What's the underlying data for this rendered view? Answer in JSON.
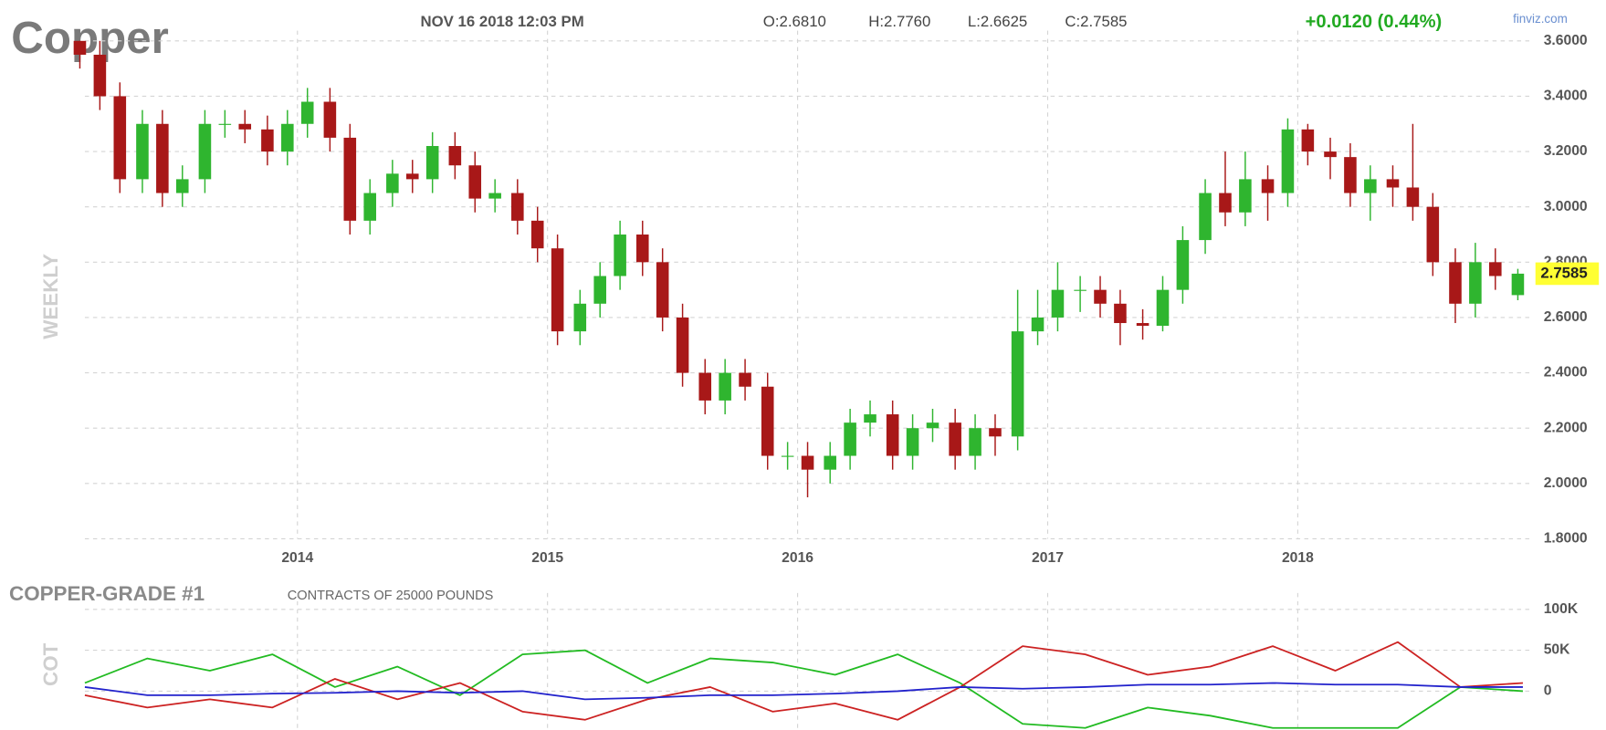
{
  "header": {
    "title": "Copper",
    "date": "NOV 16 2018 12:03 PM",
    "open": "O:2.6810",
    "high": "H:2.7760",
    "low": "L:2.6625",
    "close": "C:2.7585",
    "change": "+0.0120 (0.44%)",
    "source": "finviz.com"
  },
  "chart_data": [
    {
      "type": "candlestick",
      "y_label": "WEEKLY",
      "up_color": "#2fb52f",
      "down_color": "#a81818",
      "grid": true,
      "xlim": [
        2013.15,
        2018.93
      ],
      "xticks": [
        2014,
        2015,
        2016,
        2017,
        2018
      ],
      "ylim": [
        1.8,
        3.6
      ],
      "yticks": [
        {
          "value": 1.8,
          "label": "1.8000"
        },
        {
          "value": 2.0,
          "label": "2.0000"
        },
        {
          "value": 2.2,
          "label": "2.2000"
        },
        {
          "value": 2.4,
          "label": "2.4000"
        },
        {
          "value": 2.6,
          "label": "2.6000"
        },
        {
          "value": 2.8,
          "label": "2.8000"
        },
        {
          "value": 3.0,
          "label": "3.0000"
        },
        {
          "value": 3.2,
          "label": "3.2000"
        },
        {
          "value": 3.4,
          "label": "3.4000"
        },
        {
          "value": 3.6,
          "label": "3.6000"
        }
      ],
      "x": [
        2013.13,
        2013.21,
        2013.29,
        2013.38,
        2013.46,
        2013.54,
        2013.63,
        2013.71,
        2013.79,
        2013.88,
        2013.96,
        2014.04,
        2014.13,
        2014.21,
        2014.29,
        2014.38,
        2014.46,
        2014.54,
        2014.63,
        2014.71,
        2014.79,
        2014.88,
        2014.96,
        2015.04,
        2015.13,
        2015.21,
        2015.29,
        2015.38,
        2015.46,
        2015.54,
        2015.63,
        2015.71,
        2015.79,
        2015.88,
        2015.96,
        2016.04,
        2016.13,
        2016.21,
        2016.29,
        2016.38,
        2016.46,
        2016.54,
        2016.63,
        2016.71,
        2016.79,
        2016.88,
        2016.96,
        2017.04,
        2017.13,
        2017.21,
        2017.29,
        2017.38,
        2017.46,
        2017.54,
        2017.63,
        2017.71,
        2017.79,
        2017.88,
        2017.96,
        2018.04,
        2018.13,
        2018.21,
        2018.29,
        2018.38,
        2018.46,
        2018.54,
        2018.63,
        2018.71,
        2018.79,
        2018.88
      ],
      "open": [
        3.6,
        3.55,
        3.4,
        3.1,
        3.3,
        3.05,
        3.1,
        3.3,
        3.3,
        3.28,
        3.2,
        3.3,
        3.38,
        3.25,
        2.95,
        3.05,
        3.12,
        3.1,
        3.22,
        3.15,
        3.03,
        3.05,
        2.95,
        2.85,
        2.55,
        2.65,
        2.75,
        2.9,
        2.8,
        2.6,
        2.4,
        2.3,
        2.4,
        2.35,
        2.1,
        2.1,
        2.05,
        2.1,
        2.22,
        2.25,
        2.1,
        2.2,
        2.22,
        2.1,
        2.2,
        2.17,
        2.55,
        2.6,
        2.7,
        2.7,
        2.65,
        2.58,
        2.57,
        2.7,
        2.88,
        3.05,
        2.98,
        3.1,
        3.05,
        3.28,
        3.2,
        3.18,
        3.05,
        3.1,
        3.07,
        3.0,
        2.8,
        2.65,
        2.8,
        2.681
      ],
      "high": [
        3.6,
        3.6,
        3.45,
        3.35,
        3.35,
        3.15,
        3.35,
        3.35,
        3.35,
        3.33,
        3.35,
        3.43,
        3.43,
        3.3,
        3.1,
        3.17,
        3.17,
        3.27,
        3.27,
        3.2,
        3.1,
        3.1,
        3.0,
        2.9,
        2.7,
        2.8,
        2.95,
        2.95,
        2.85,
        2.65,
        2.45,
        2.45,
        2.45,
        2.4,
        2.15,
        2.15,
        2.15,
        2.27,
        2.3,
        2.3,
        2.25,
        2.27,
        2.27,
        2.25,
        2.25,
        2.7,
        2.7,
        2.8,
        2.75,
        2.75,
        2.7,
        2.63,
        2.75,
        2.93,
        3.1,
        3.2,
        3.2,
        3.15,
        3.32,
        3.3,
        3.25,
        3.23,
        3.15,
        3.15,
        3.3,
        3.05,
        2.85,
        2.87,
        2.85,
        2.776
      ],
      "low": [
        3.5,
        3.35,
        3.05,
        3.05,
        3.0,
        3.0,
        3.05,
        3.25,
        3.23,
        3.15,
        3.15,
        3.25,
        3.2,
        2.9,
        2.9,
        3.0,
        3.05,
        3.05,
        3.1,
        2.98,
        2.98,
        2.9,
        2.8,
        2.5,
        2.5,
        2.6,
        2.7,
        2.75,
        2.55,
        2.35,
        2.25,
        2.25,
        2.3,
        2.05,
        2.05,
        1.95,
        2.0,
        2.05,
        2.17,
        2.05,
        2.05,
        2.15,
        2.05,
        2.05,
        2.1,
        2.12,
        2.5,
        2.55,
        2.62,
        2.6,
        2.5,
        2.52,
        2.55,
        2.65,
        2.83,
        2.93,
        2.93,
        2.95,
        3.0,
        3.15,
        3.1,
        3.0,
        2.95,
        3.0,
        2.95,
        2.75,
        2.58,
        2.6,
        2.7,
        2.6625
      ],
      "close": [
        3.55,
        3.4,
        3.1,
        3.3,
        3.05,
        3.1,
        3.3,
        3.3,
        3.28,
        3.2,
        3.3,
        3.38,
        3.25,
        2.95,
        3.05,
        3.12,
        3.1,
        3.22,
        3.15,
        3.03,
        3.05,
        2.95,
        2.85,
        2.55,
        2.65,
        2.75,
        2.9,
        2.8,
        2.6,
        2.4,
        2.3,
        2.4,
        2.35,
        2.1,
        2.1,
        2.05,
        2.1,
        2.22,
        2.25,
        2.1,
        2.2,
        2.22,
        2.1,
        2.2,
        2.17,
        2.55,
        2.6,
        2.7,
        2.7,
        2.65,
        2.58,
        2.57,
        2.7,
        2.88,
        3.05,
        2.98,
        3.1,
        3.05,
        3.28,
        3.2,
        3.18,
        3.05,
        3.1,
        3.07,
        3.0,
        2.8,
        2.65,
        2.8,
        2.75,
        2.7585
      ]
    },
    {
      "type": "line",
      "title": "COPPER-GRADE #1",
      "subtitle": "CONTRACTS OF 25000 POUNDS",
      "y_label": "COT",
      "grid": true,
      "xlim": [
        2013.15,
        2018.93
      ],
      "xticks": [
        2014,
        2015,
        2016,
        2017,
        2018
      ],
      "ylim": [
        -45000,
        107500
      ],
      "yticks": [
        {
          "value": 0,
          "label": "0"
        },
        {
          "value": 50000,
          "label": "50K"
        },
        {
          "value": 100000,
          "label": "100K"
        }
      ],
      "x": [
        2013.15,
        2013.4,
        2013.65,
        2013.9,
        2014.15,
        2014.4,
        2014.65,
        2014.9,
        2015.15,
        2015.4,
        2015.65,
        2015.9,
        2016.15,
        2016.4,
        2016.65,
        2016.9,
        2017.15,
        2017.4,
        2017.65,
        2017.9,
        2018.15,
        2018.4,
        2018.65,
        2018.9
      ],
      "series": [
        {
          "color": "#22bb22",
          "values": [
            10000,
            40000,
            25000,
            45000,
            5000,
            30000,
            -5000,
            45000,
            50000,
            10000,
            40000,
            35000,
            20000,
            45000,
            10000,
            -40000,
            -45000,
            -20000,
            -30000,
            -45000,
            -45000,
            -45000,
            5000,
            0
          ]
        },
        {
          "color": "#cc2222",
          "values": [
            -5000,
            -20000,
            -10000,
            -20000,
            15000,
            -10000,
            10000,
            -25000,
            -35000,
            -10000,
            5000,
            -25000,
            -15000,
            -35000,
            5000,
            55000,
            45000,
            20000,
            30000,
            55000,
            25000,
            60000,
            5000,
            10000
          ]
        },
        {
          "color": "#2222cc",
          "values": [
            5000,
            -5000,
            -5000,
            -3000,
            -2000,
            0,
            -2000,
            0,
            -10000,
            -8000,
            -5000,
            -5000,
            -3000,
            0,
            5000,
            3000,
            5000,
            8000,
            8000,
            10000,
            8000,
            8000,
            5000,
            5000
          ]
        }
      ]
    }
  ]
}
